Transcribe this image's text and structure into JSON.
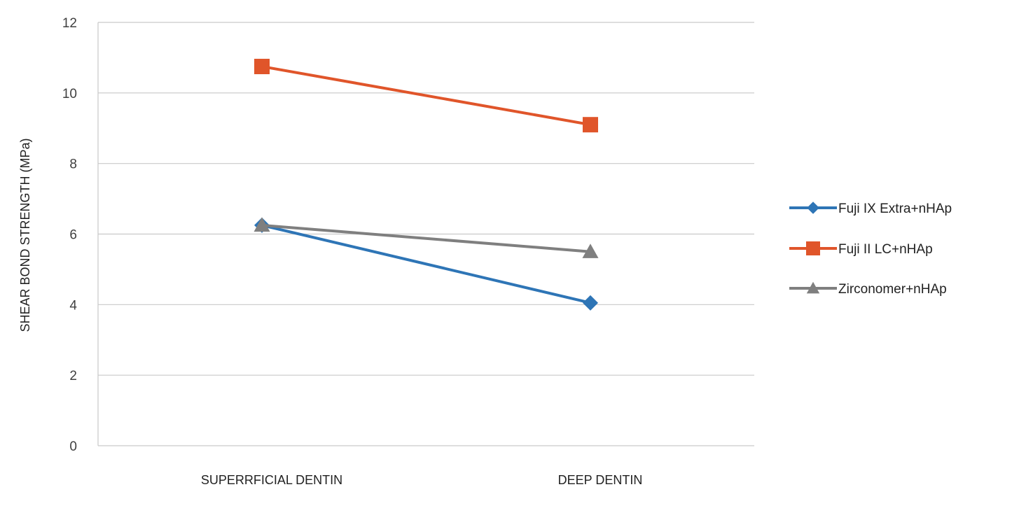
{
  "chart_data": {
    "type": "line",
    "title": "",
    "xlabel": "",
    "ylabel": "SHEAR BOND STRENGTH (MPa)",
    "categories": [
      "SUPERRFICIAL DENTIN",
      "DEEP DENTIN"
    ],
    "ylim": [
      0,
      12
    ],
    "yticks": [
      0,
      2,
      4,
      6,
      8,
      10,
      12
    ],
    "grid": true,
    "legend_position": "right",
    "series": [
      {
        "name": "Fuji IX Extra+nHAp",
        "values": [
          6.25,
          4.05
        ],
        "color": "#2e75b6",
        "marker": "diamond"
      },
      {
        "name": "Fuji II LC+nHAp",
        "values": [
          10.75,
          9.1
        ],
        "color": "#e0552a",
        "marker": "square"
      },
      {
        "name": "Zirconomer+nHAp",
        "values": [
          6.25,
          5.5
        ],
        "color": "#7f7f7f",
        "marker": "triangle"
      }
    ]
  }
}
